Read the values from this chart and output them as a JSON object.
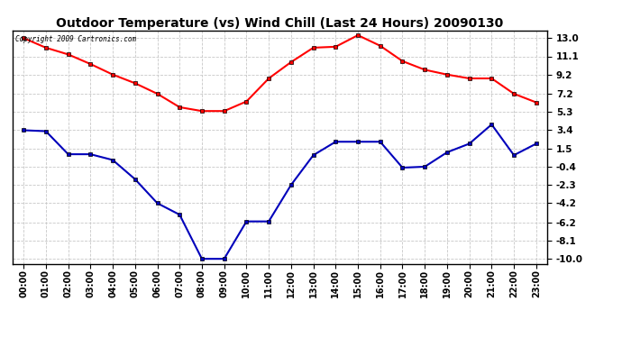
{
  "title": "Outdoor Temperature (vs) Wind Chill (Last 24 Hours) 20090130",
  "copyright": "Copyright 2009 Cartronics.com",
  "hours": [
    "00:00",
    "01:00",
    "02:00",
    "03:00",
    "04:00",
    "05:00",
    "06:00",
    "07:00",
    "08:00",
    "09:00",
    "10:00",
    "11:00",
    "12:00",
    "13:00",
    "14:00",
    "15:00",
    "16:00",
    "17:00",
    "18:00",
    "19:00",
    "20:00",
    "21:00",
    "22:00",
    "23:00"
  ],
  "red_data": [
    13.0,
    12.0,
    11.3,
    10.3,
    9.2,
    8.3,
    7.2,
    5.8,
    5.4,
    5.4,
    6.4,
    8.8,
    10.5,
    12.0,
    12.1,
    13.3,
    12.2,
    10.6,
    9.7,
    9.2,
    8.8,
    8.8,
    7.2,
    6.3
  ],
  "blue_data": [
    3.4,
    3.3,
    0.9,
    0.9,
    0.3,
    -1.7,
    -4.2,
    -5.4,
    -10.0,
    -10.0,
    -6.1,
    -6.1,
    -2.3,
    0.8,
    2.2,
    2.2,
    2.2,
    -0.5,
    -0.4,
    1.1,
    2.0,
    4.0,
    0.8,
    2.0
  ],
  "yticks": [
    13.0,
    11.1,
    9.2,
    7.2,
    5.3,
    3.4,
    1.5,
    -0.4,
    -2.3,
    -4.2,
    -6.2,
    -8.1,
    -10.0
  ],
  "ylim": [
    -10.5,
    13.8
  ],
  "background_color": "#ffffff",
  "grid_color": "#c8c8c8",
  "red_color": "#ff0000",
  "blue_color": "#0000bb",
  "title_fontsize": 10,
  "marker_size": 3,
  "linewidth": 1.5
}
